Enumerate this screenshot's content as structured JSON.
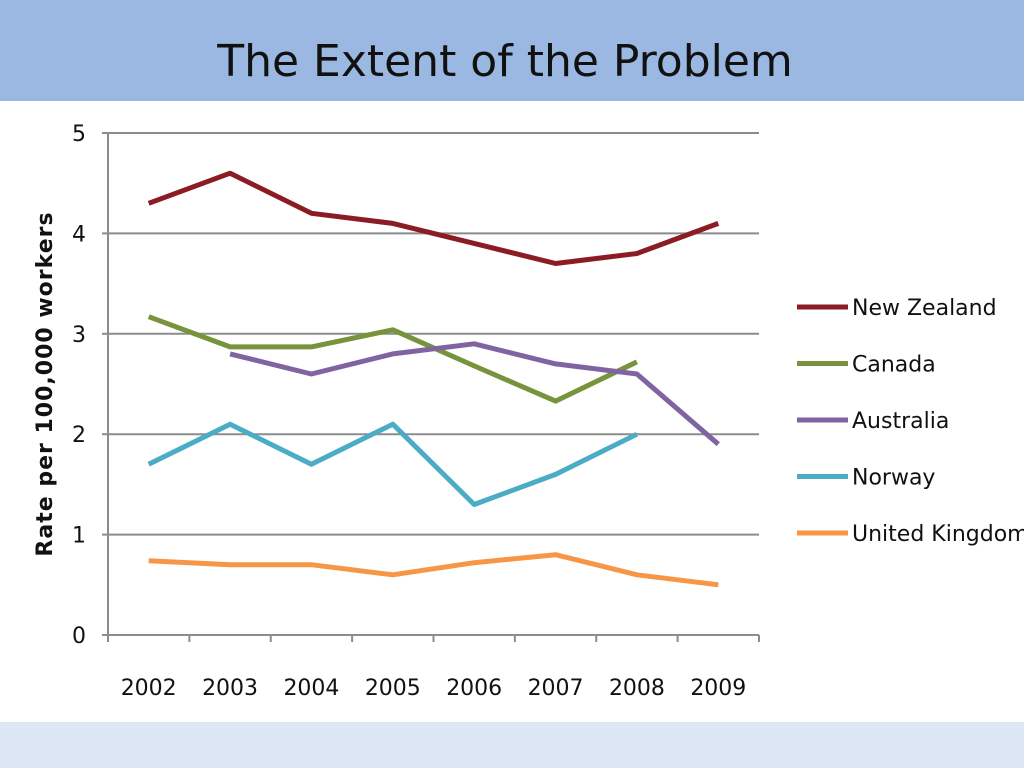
{
  "slide": {
    "title": "The Extent of the Problem"
  },
  "chart_data": {
    "type": "line",
    "title": "",
    "xlabel": "",
    "ylabel": "Rate per 100,000 workers",
    "categories": [
      "2002",
      "2003",
      "2004",
      "2005",
      "2006",
      "2007",
      "2008",
      "2009"
    ],
    "ylim": [
      0,
      5
    ],
    "yticks": [
      "0",
      "1",
      "2",
      "3",
      "4",
      "5"
    ],
    "grid": true,
    "legend_position": "right",
    "series": [
      {
        "name": "New Zealand",
        "color": "#8b1c24",
        "values": [
          4.3,
          4.6,
          4.2,
          4.1,
          3.9,
          3.7,
          3.8,
          4.1
        ]
      },
      {
        "name": "Canada",
        "color": "#77933c",
        "values": [
          3.17,
          2.87,
          2.87,
          3.04,
          2.68,
          2.33,
          2.72,
          null
        ]
      },
      {
        "name": "Australia",
        "color": "#8064a2",
        "values": [
          null,
          2.8,
          2.6,
          2.8,
          2.9,
          2.7,
          2.6,
          1.9
        ]
      },
      {
        "name": "Norway",
        "color": "#4bacc6",
        "values": [
          1.7,
          2.1,
          1.7,
          2.1,
          1.3,
          1.6,
          2.0,
          null
        ]
      },
      {
        "name": "United Kingdom",
        "color": "#f79646",
        "values": [
          0.74,
          0.7,
          0.7,
          0.6,
          0.72,
          0.8,
          0.6,
          0.5
        ]
      }
    ]
  }
}
